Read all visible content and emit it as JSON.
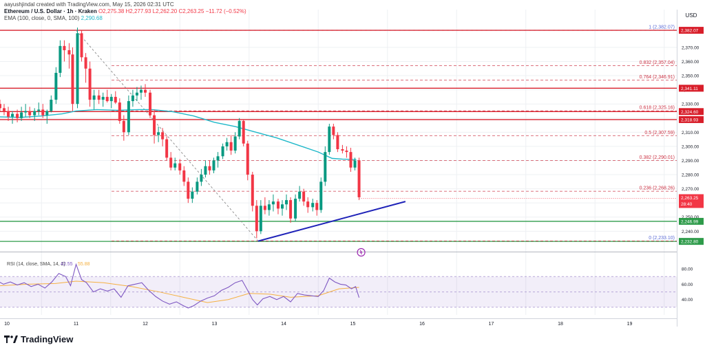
{
  "header": {
    "creator": "aayushjindal created with TradingView.com, May 15, 2026 02:31 UTC",
    "symbol": "Ethereum / U.S. Dollar · 1h · Kraken",
    "ohlc": "O2,275.38 H2,277.93 L2,262.20 C2,263.25 −11.72 (−0.52%)",
    "ema": "EMA (100, close, 0, SMA, 100)",
    "ema_value": "2,290.68"
  },
  "footer": {
    "brand": "TradingView"
  },
  "colors": {
    "up": "#089981",
    "down": "#f23645",
    "ema": "#1fb8c9",
    "rsi": "#7e57c2",
    "rsi_ma": "#f5b041",
    "trend": "#1e22b8",
    "support": "#2e9b4a",
    "resist": "#d81e2a"
  },
  "chart_data": {
    "type": "candlestick",
    "currency": "USD",
    "x_ticks": [
      "10",
      "11",
      "12",
      "13",
      "14",
      "15",
      "16",
      "17",
      "18",
      "19"
    ],
    "y_ticks": [
      "2,240.00",
      "2,250.00",
      "2,260.00",
      "2,270.00",
      "2,280.00",
      "2,290.00",
      "2,300.00",
      "2,310.00",
      "2,320.00",
      "2,330.00",
      "2,340.00",
      "2,350.00",
      "2,360.00",
      "2,370.00"
    ],
    "ylim": [
      2228,
      2386
    ],
    "horizontal_levels": [
      {
        "price": 2382.07,
        "label": "2,382.07",
        "type": "resistance"
      },
      {
        "price": 2341.11,
        "label": "2,341.11",
        "type": "resistance"
      },
      {
        "price": 2324.6,
        "label": "2,324.60",
        "type": "resistance"
      },
      {
        "price": 2318.93,
        "label": "2,318.93",
        "type": "resistance"
      },
      {
        "price": 2246.99,
        "label": "2,246.99",
        "type": "support"
      },
      {
        "price": 2232.8,
        "label": "2,232.80",
        "type": "support"
      }
    ],
    "fibonacci": [
      {
        "ratio": "1",
        "price": 2382.07,
        "label": "1 (2,382.07)"
      },
      {
        "ratio": "0.832",
        "price": 2357.04,
        "label": "0.832 (2,357.04)"
      },
      {
        "ratio": "0.764",
        "price": 2346.91,
        "label": "0.764 (2,346.91)"
      },
      {
        "ratio": "0.618",
        "price": 2325.16,
        "label": "0.618 (2,325.16)"
      },
      {
        "ratio": "0.5",
        "price": 2307.59,
        "label": "0.5 (2,307.59)"
      },
      {
        "ratio": "0.382",
        "price": 2290.01,
        "label": "0.382 (2,290.01)"
      },
      {
        "ratio": "0.236",
        "price": 2268.26,
        "label": "0.236 (2,268.26)"
      },
      {
        "ratio": "0",
        "price": 2233.1,
        "label": "0 (2,233.10)"
      }
    ],
    "current_price": {
      "price": 2263.25,
      "label": "2,263.25",
      "countdown": "28:40"
    },
    "trendline": {
      "from": {
        "day": 13.63,
        "price": 2233
      },
      "to": {
        "day": 15.76,
        "price": 2261
      }
    },
    "ema_100": [
      [
        9.45,
        2319
      ],
      [
        9.8,
        2321
      ],
      [
        10.2,
        2320.5
      ],
      [
        10.5,
        2321.5
      ],
      [
        10.8,
        2323
      ],
      [
        11.0,
        2325
      ],
      [
        11.3,
        2326
      ],
      [
        11.6,
        2325.5
      ],
      [
        11.9,
        2326
      ],
      [
        12.1,
        2326
      ],
      [
        12.4,
        2324.5
      ],
      [
        12.7,
        2321.5
      ],
      [
        13.0,
        2317
      ],
      [
        13.3,
        2314
      ],
      [
        13.6,
        2310
      ],
      [
        13.9,
        2306
      ],
      [
        14.2,
        2301
      ],
      [
        14.5,
        2296
      ],
      [
        14.7,
        2291.5
      ],
      [
        14.85,
        2291
      ],
      [
        15.05,
        2290.7
      ]
    ],
    "candles": [
      [
        9.46,
        2306,
        2310,
        2301,
        2305
      ],
      [
        9.52,
        2305,
        2309,
        2303,
        2307
      ],
      [
        9.58,
        2307,
        2312,
        2302,
        2304
      ],
      [
        9.64,
        2304,
        2308,
        2298,
        2306
      ],
      [
        9.71,
        2306,
        2318,
        2305,
        2316
      ],
      [
        9.77,
        2316,
        2334,
        2314,
        2328
      ],
      [
        9.83,
        2328,
        2336,
        2325,
        2330
      ],
      [
        9.9,
        2330,
        2333,
        2325,
        2327
      ],
      [
        9.96,
        2327,
        2330,
        2322,
        2325
      ],
      [
        10.02,
        2325,
        2328,
        2318,
        2321
      ],
      [
        10.08,
        2321,
        2325,
        2316,
        2323
      ],
      [
        10.15,
        2323,
        2326,
        2317,
        2320
      ],
      [
        10.21,
        2320,
        2328,
        2318,
        2324
      ],
      [
        10.27,
        2324,
        2330,
        2321,
        2325
      ],
      [
        10.33,
        2325,
        2328,
        2320,
        2322
      ],
      [
        10.4,
        2322,
        2327,
        2318,
        2325
      ],
      [
        10.46,
        2325,
        2331,
        2322,
        2326
      ],
      [
        10.52,
        2326,
        2330,
        2320,
        2322
      ],
      [
        10.58,
        2322,
        2326,
        2316,
        2325
      ],
      [
        10.64,
        2325,
        2336,
        2324,
        2333
      ],
      [
        10.71,
        2333,
        2356,
        2330,
        2352
      ],
      [
        10.77,
        2352,
        2375,
        2349,
        2371
      ],
      [
        10.83,
        2371,
        2375,
        2360,
        2368
      ],
      [
        10.9,
        2368,
        2373,
        2355,
        2365
      ],
      [
        10.95,
        2365,
        2370,
        2325,
        2330
      ],
      [
        11.02,
        2330,
        2384,
        2327,
        2380
      ],
      [
        11.08,
        2380,
        2382,
        2360,
        2363
      ],
      [
        11.14,
        2363,
        2366,
        2345,
        2355
      ],
      [
        11.2,
        2355,
        2360,
        2328,
        2333
      ],
      [
        11.26,
        2333,
        2340,
        2326,
        2336
      ],
      [
        11.33,
        2336,
        2340,
        2330,
        2333
      ],
      [
        11.39,
        2333,
        2338,
        2328,
        2335
      ],
      [
        11.45,
        2335,
        2340,
        2331,
        2332
      ],
      [
        11.51,
        2332,
        2337,
        2327,
        2335
      ],
      [
        11.57,
        2335,
        2339,
        2330,
        2331
      ],
      [
        11.63,
        2331,
        2334,
        2316,
        2318
      ],
      [
        11.69,
        2318,
        2322,
        2304,
        2310
      ],
      [
        11.76,
        2310,
        2336,
        2308,
        2332
      ],
      [
        11.82,
        2332,
        2340,
        2328,
        2336
      ],
      [
        11.88,
        2336,
        2342,
        2332,
        2338
      ],
      [
        11.94,
        2338,
        2343,
        2333,
        2340
      ],
      [
        12.0,
        2340,
        2344,
        2335,
        2338
      ],
      [
        12.07,
        2338,
        2340,
        2320,
        2322
      ],
      [
        12.13,
        2322,
        2326,
        2302,
        2308
      ],
      [
        12.19,
        2308,
        2314,
        2303,
        2310
      ],
      [
        12.25,
        2310,
        2313,
        2300,
        2305
      ],
      [
        12.31,
        2305,
        2307,
        2290,
        2292
      ],
      [
        12.37,
        2292,
        2296,
        2283,
        2285
      ],
      [
        12.43,
        2285,
        2292,
        2283,
        2288
      ],
      [
        12.5,
        2288,
        2291,
        2280,
        2283
      ],
      [
        12.56,
        2283,
        2286,
        2272,
        2275
      ],
      [
        12.62,
        2275,
        2278,
        2260,
        2263
      ],
      [
        12.68,
        2263,
        2271,
        2260,
        2268
      ],
      [
        12.75,
        2268,
        2278,
        2266,
        2275
      ],
      [
        12.81,
        2275,
        2284,
        2272,
        2280
      ],
      [
        12.87,
        2280,
        2290,
        2278,
        2286
      ],
      [
        12.93,
        2286,
        2290,
        2280,
        2283
      ],
      [
        12.99,
        2283,
        2292,
        2281,
        2290
      ],
      [
        13.05,
        2290,
        2296,
        2285,
        2293
      ],
      [
        13.12,
        2293,
        2302,
        2291,
        2300
      ],
      [
        13.18,
        2300,
        2306,
        2297,
        2303
      ],
      [
        13.24,
        2303,
        2308,
        2294,
        2297
      ],
      [
        13.3,
        2297,
        2310,
        2295,
        2307
      ],
      [
        13.36,
        2307,
        2320,
        2305,
        2318
      ],
      [
        13.42,
        2318,
        2319,
        2300,
        2302
      ],
      [
        13.48,
        2302,
        2304,
        2276,
        2280
      ],
      [
        13.55,
        2280,
        2282,
        2254,
        2258
      ],
      [
        13.61,
        2258,
        2262,
        2235,
        2240
      ],
      [
        13.67,
        2240,
        2262,
        2238,
        2258
      ],
      [
        13.73,
        2258,
        2264,
        2252,
        2255
      ],
      [
        13.79,
        2255,
        2262,
        2251,
        2259
      ],
      [
        13.85,
        2259,
        2266,
        2254,
        2261
      ],
      [
        13.92,
        2261,
        2263,
        2252,
        2256
      ],
      [
        13.98,
        2256,
        2262,
        2251,
        2259
      ],
      [
        14.04,
        2259,
        2266,
        2255,
        2262
      ],
      [
        14.1,
        2262,
        2264,
        2246,
        2249
      ],
      [
        14.17,
        2249,
        2266,
        2247,
        2263
      ],
      [
        14.23,
        2263,
        2272,
        2261,
        2268
      ],
      [
        14.29,
        2268,
        2270,
        2258,
        2261
      ],
      [
        14.35,
        2261,
        2264,
        2253,
        2257
      ],
      [
        14.42,
        2257,
        2263,
        2254,
        2260
      ],
      [
        14.48,
        2260,
        2262,
        2251,
        2255
      ],
      [
        14.54,
        2255,
        2278,
        2253,
        2275
      ],
      [
        14.6,
        2275,
        2300,
        2272,
        2296
      ],
      [
        14.66,
        2296,
        2316,
        2294,
        2314
      ],
      [
        14.72,
        2314,
        2316,
        2305,
        2308
      ],
      [
        14.78,
        2308,
        2310,
        2296,
        2298
      ],
      [
        14.85,
        2298,
        2301,
        2295,
        2297
      ],
      [
        14.91,
        2297,
        2300,
        2292,
        2296
      ],
      [
        14.97,
        2296,
        2299,
        2282,
        2285
      ],
      [
        15.03,
        2285,
        2292,
        2283,
        2290
      ],
      [
        15.09,
        2290,
        2292,
        2262,
        2264
      ]
    ],
    "rsi": {
      "label": "RSI (14, close, SMA, 14, 2)",
      "value": "42.55",
      "ma_value": "55.88",
      "y_ticks": [
        "40.00",
        "60.00",
        "80.00"
      ],
      "ylim": [
        20,
        90
      ],
      "band": [
        30,
        70
      ],
      "series": [
        [
          9.45,
          55
        ],
        [
          9.55,
          58
        ],
        [
          9.65,
          62
        ],
        [
          9.75,
          67
        ],
        [
          9.85,
          65
        ],
        [
          9.95,
          60
        ],
        [
          10.05,
          63
        ],
        [
          10.15,
          59
        ],
        [
          10.25,
          62
        ],
        [
          10.35,
          57
        ],
        [
          10.45,
          60
        ],
        [
          10.55,
          55
        ],
        [
          10.65,
          63
        ],
        [
          10.75,
          74
        ],
        [
          10.85,
          70
        ],
        [
          10.92,
          58
        ],
        [
          11.0,
          86
        ],
        [
          11.08,
          66
        ],
        [
          11.15,
          62
        ],
        [
          11.25,
          50
        ],
        [
          11.35,
          54
        ],
        [
          11.45,
          51
        ],
        [
          11.55,
          54
        ],
        [
          11.65,
          43
        ],
        [
          11.75,
          58
        ],
        [
          11.85,
          60
        ],
        [
          11.95,
          62
        ],
        [
          12.05,
          52
        ],
        [
          12.15,
          44
        ],
        [
          12.25,
          38
        ],
        [
          12.35,
          34
        ],
        [
          12.45,
          37
        ],
        [
          12.55,
          32
        ],
        [
          12.62,
          29
        ],
        [
          12.7,
          32
        ],
        [
          12.8,
          38
        ],
        [
          12.9,
          42
        ],
        [
          13.0,
          45
        ],
        [
          13.1,
          52
        ],
        [
          13.2,
          56
        ],
        [
          13.3,
          62
        ],
        [
          13.4,
          65
        ],
        [
          13.48,
          52
        ],
        [
          13.55,
          40
        ],
        [
          13.62,
          33
        ],
        [
          13.7,
          41
        ],
        [
          13.8,
          44
        ],
        [
          13.9,
          40
        ],
        [
          14.0,
          44
        ],
        [
          14.1,
          37
        ],
        [
          14.2,
          48
        ],
        [
          14.3,
          46
        ],
        [
          14.4,
          45
        ],
        [
          14.5,
          44
        ],
        [
          14.58,
          52
        ],
        [
          14.66,
          68
        ],
        [
          14.74,
          63
        ],
        [
          14.82,
          60
        ],
        [
          14.9,
          59
        ],
        [
          14.98,
          54
        ],
        [
          15.04,
          57
        ],
        [
          15.09,
          42.55
        ]
      ],
      "ma_series": [
        [
          9.45,
          55
        ],
        [
          9.9,
          58
        ],
        [
          10.3,
          60
        ],
        [
          10.7,
          61
        ],
        [
          11.0,
          64
        ],
        [
          11.4,
          62
        ],
        [
          11.8,
          57
        ],
        [
          12.2,
          50
        ],
        [
          12.6,
          42
        ],
        [
          12.9,
          36
        ],
        [
          13.2,
          40
        ],
        [
          13.5,
          48
        ],
        [
          13.8,
          47
        ],
        [
          14.1,
          43
        ],
        [
          14.5,
          45
        ],
        [
          14.8,
          54
        ],
        [
          15.09,
          55.88
        ]
      ]
    }
  }
}
